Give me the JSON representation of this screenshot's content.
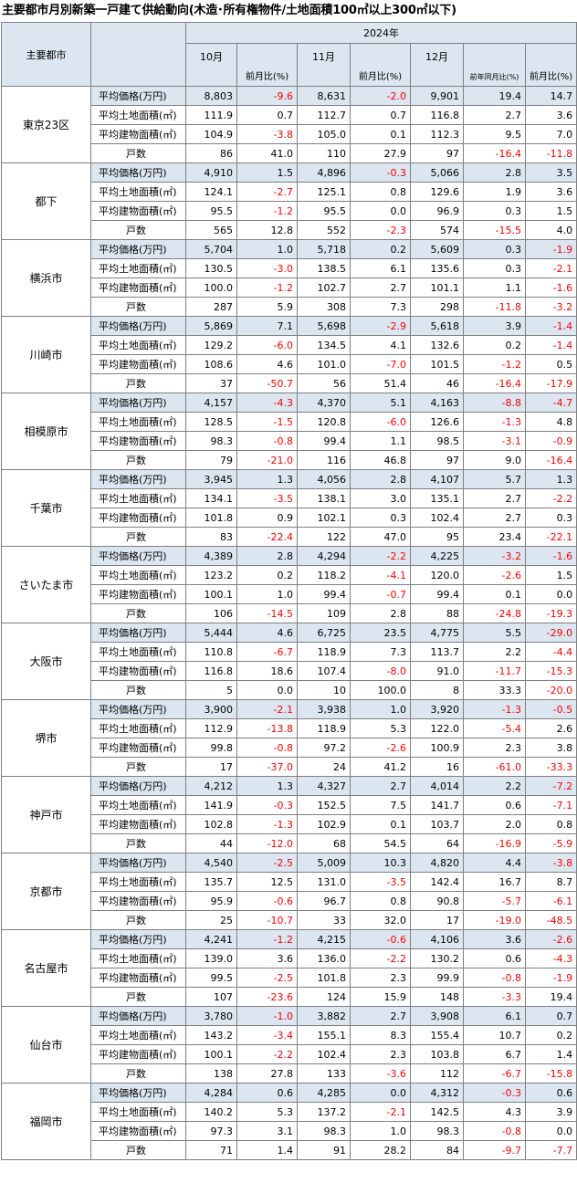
{
  "title": "主要都市月別新築一戸建て供給動向(木造･所有権物件/土地面積100㎡以上300㎡以下)",
  "header": {
    "city_col": "主要都市",
    "year": "2024年",
    "months": [
      "10月",
      "11月",
      "12月"
    ],
    "mom_label": "前月比(%)",
    "yoy_label": "前年同月比(%)"
  },
  "metrics": [
    "平均価格(万円)",
    "平均土地面積(㎡)",
    "平均建物面積(㎡)",
    "戸数"
  ],
  "cities": [
    {
      "name": "東京23区",
      "rows": [
        [
          "8,803",
          "-9.6",
          "8,631",
          "-2.0",
          "9,901",
          "19.4",
          "14.7"
        ],
        [
          "111.9",
          "0.7",
          "112.7",
          "0.7",
          "116.8",
          "2.7",
          "3.6"
        ],
        [
          "104.9",
          "-3.8",
          "105.0",
          "0.1",
          "112.3",
          "9.5",
          "7.0"
        ],
        [
          "86",
          "41.0",
          "110",
          "27.9",
          "97",
          "-16.4",
          "-11.8"
        ]
      ]
    },
    {
      "name": "都下",
      "rows": [
        [
          "4,910",
          "1.5",
          "4,896",
          "-0.3",
          "5,066",
          "2.8",
          "3.5"
        ],
        [
          "124.1",
          "-2.7",
          "125.1",
          "0.8",
          "129.6",
          "1.9",
          "3.6"
        ],
        [
          "95.5",
          "-1.2",
          "95.5",
          "0.0",
          "96.9",
          "0.3",
          "1.5"
        ],
        [
          "565",
          "12.8",
          "552",
          "-2.3",
          "574",
          "-15.5",
          "4.0"
        ]
      ]
    },
    {
      "name": "横浜市",
      "rows": [
        [
          "5,704",
          "1.0",
          "5,718",
          "0.2",
          "5,609",
          "0.3",
          "-1.9"
        ],
        [
          "130.5",
          "-3.0",
          "138.5",
          "6.1",
          "135.6",
          "0.3",
          "-2.1"
        ],
        [
          "100.0",
          "-1.2",
          "102.7",
          "2.7",
          "101.1",
          "1.1",
          "-1.6"
        ],
        [
          "287",
          "5.9",
          "308",
          "7.3",
          "298",
          "-11.8",
          "-3.2"
        ]
      ]
    },
    {
      "name": "川崎市",
      "rows": [
        [
          "5,869",
          "7.1",
          "5,698",
          "-2.9",
          "5,618",
          "3.9",
          "-1.4"
        ],
        [
          "129.2",
          "-6.0",
          "134.5",
          "4.1",
          "132.6",
          "0.2",
          "-1.4"
        ],
        [
          "108.6",
          "4.6",
          "101.0",
          "-7.0",
          "101.5",
          "-1.2",
          "0.5"
        ],
        [
          "37",
          "-50.7",
          "56",
          "51.4",
          "46",
          "-16.4",
          "-17.9"
        ]
      ]
    },
    {
      "name": "相模原市",
      "rows": [
        [
          "4,157",
          "-4.3",
          "4,370",
          "5.1",
          "4,163",
          "-8.8",
          "-4.7"
        ],
        [
          "128.5",
          "-1.5",
          "120.8",
          "-6.0",
          "126.6",
          "-1.3",
          "4.8"
        ],
        [
          "98.3",
          "-0.8",
          "99.4",
          "1.1",
          "98.5",
          "-3.1",
          "-0.9"
        ],
        [
          "79",
          "-21.0",
          "116",
          "46.8",
          "97",
          "9.0",
          "-16.4"
        ]
      ]
    },
    {
      "name": "千葉市",
      "rows": [
        [
          "3,945",
          "1.3",
          "4,056",
          "2.8",
          "4,107",
          "5.7",
          "1.3"
        ],
        [
          "134.1",
          "-3.5",
          "138.1",
          "3.0",
          "135.1",
          "2.7",
          "-2.2"
        ],
        [
          "101.8",
          "0.9",
          "102.1",
          "0.3",
          "102.4",
          "2.7",
          "0.3"
        ],
        [
          "83",
          "-22.4",
          "122",
          "47.0",
          "95",
          "23.4",
          "-22.1"
        ]
      ]
    },
    {
      "name": "さいたま市",
      "rows": [
        [
          "4,389",
          "2.8",
          "4,294",
          "-2.2",
          "4,225",
          "-3.2",
          "-1.6"
        ],
        [
          "123.2",
          "0.2",
          "118.2",
          "-4.1",
          "120.0",
          "-2.6",
          "1.5"
        ],
        [
          "100.1",
          "1.0",
          "99.4",
          "-0.7",
          "99.4",
          "0.1",
          "0.0"
        ],
        [
          "106",
          "-14.5",
          "109",
          "2.8",
          "88",
          "-24.8",
          "-19.3"
        ]
      ]
    },
    {
      "name": "大阪市",
      "rows": [
        [
          "5,444",
          "4.6",
          "6,725",
          "23.5",
          "4,775",
          "5.5",
          "-29.0"
        ],
        [
          "110.8",
          "-6.7",
          "118.9",
          "7.3",
          "113.7",
          "2.2",
          "-4.4"
        ],
        [
          "116.8",
          "18.6",
          "107.4",
          "-8.0",
          "91.0",
          "-11.7",
          "-15.3"
        ],
        [
          "5",
          "0.0",
          "10",
          "100.0",
          "8",
          "33.3",
          "-20.0"
        ]
      ]
    },
    {
      "name": "堺市",
      "rows": [
        [
          "3,900",
          "-2.1",
          "3,938",
          "1.0",
          "3,920",
          "-1.3",
          "-0.5"
        ],
        [
          "112.9",
          "-13.8",
          "118.9",
          "5.3",
          "122.0",
          "-5.4",
          "2.6"
        ],
        [
          "99.8",
          "-0.8",
          "97.2",
          "-2.6",
          "100.9",
          "2.3",
          "3.8"
        ],
        [
          "17",
          "-37.0",
          "24",
          "41.2",
          "16",
          "-61.0",
          "-33.3"
        ]
      ]
    },
    {
      "name": "神戸市",
      "rows": [
        [
          "4,212",
          "1.3",
          "4,327",
          "2.7",
          "4,014",
          "2.2",
          "-7.2"
        ],
        [
          "141.9",
          "-0.3",
          "152.5",
          "7.5",
          "141.7",
          "0.6",
          "-7.1"
        ],
        [
          "102.8",
          "-1.3",
          "102.9",
          "0.1",
          "103.7",
          "2.0",
          "0.8"
        ],
        [
          "44",
          "-12.0",
          "68",
          "54.5",
          "64",
          "-16.9",
          "-5.9"
        ]
      ]
    },
    {
      "name": "京都市",
      "rows": [
        [
          "4,540",
          "-2.5",
          "5,009",
          "10.3",
          "4,820",
          "4.4",
          "-3.8"
        ],
        [
          "135.7",
          "12.5",
          "131.0",
          "-3.5",
          "142.4",
          "16.7",
          "8.7"
        ],
        [
          "95.9",
          "-0.6",
          "96.7",
          "0.8",
          "90.8",
          "-5.7",
          "-6.1"
        ],
        [
          "25",
          "-10.7",
          "33",
          "32.0",
          "17",
          "-19.0",
          "-48.5"
        ]
      ]
    },
    {
      "name": "名古屋市",
      "rows": [
        [
          "4,241",
          "-1.2",
          "4,215",
          "-0.6",
          "4,106",
          "3.6",
          "-2.6"
        ],
        [
          "139.0",
          "3.6",
          "136.0",
          "-2.2",
          "130.2",
          "0.6",
          "-4.3"
        ],
        [
          "99.5",
          "-2.5",
          "101.8",
          "2.3",
          "99.9",
          "-0.8",
          "-1.9"
        ],
        [
          "107",
          "-23.6",
          "124",
          "15.9",
          "148",
          "-3.3",
          "19.4"
        ]
      ]
    },
    {
      "name": "仙台市",
      "rows": [
        [
          "3,780",
          "-1.0",
          "3,882",
          "2.7",
          "3,908",
          "6.1",
          "0.7"
        ],
        [
          "143.2",
          "-3.4",
          "155.1",
          "8.3",
          "155.4",
          "10.7",
          "0.2"
        ],
        [
          "100.1",
          "-2.2",
          "102.4",
          "2.3",
          "103.8",
          "6.7",
          "1.4"
        ],
        [
          "138",
          "27.8",
          "133",
          "-3.6",
          "112",
          "-6.7",
          "-15.8"
        ]
      ]
    },
    {
      "name": "福岡市",
      "rows": [
        [
          "4,284",
          "0.6",
          "4,285",
          "0.0",
          "4,312",
          "-0.3",
          "0.6"
        ],
        [
          "140.2",
          "5.3",
          "137.2",
          "-2.1",
          "142.5",
          "4.3",
          "3.9"
        ],
        [
          "97.3",
          "3.1",
          "98.3",
          "1.0",
          "98.3",
          "-0.8",
          "0.0"
        ],
        [
          "71",
          "1.4",
          "91",
          "28.2",
          "84",
          "-9.7",
          "-7.7"
        ]
      ]
    }
  ]
}
